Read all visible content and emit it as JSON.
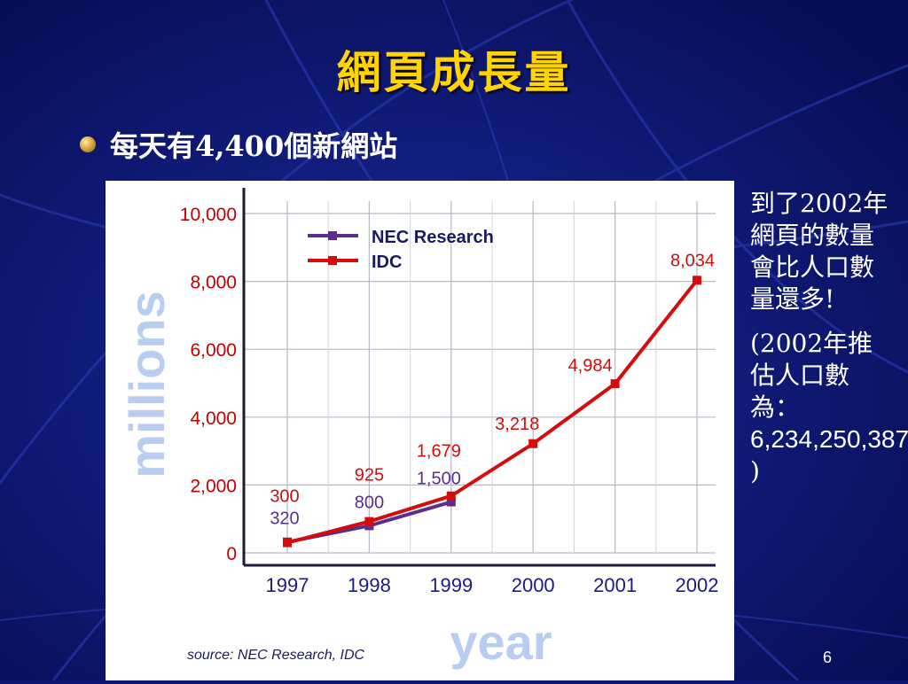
{
  "slide": {
    "title": "網頁成長量",
    "bullet": "每天有4,400個新網站",
    "page_number": "6"
  },
  "side_note": {
    "line1": "到了2002年網頁的數量會比人口數量還多!",
    "line2_a": "(2002年推估人口數為：",
    "line2_b": "6,234,250,387",
    "line2_c": " )"
  },
  "colors": {
    "background": "#0c1470",
    "title": "#ffd400",
    "nec": "#5b2d8e",
    "idc": "#d40c0c"
  },
  "chart_data": {
    "type": "line",
    "categories": [
      "1997",
      "1998",
      "1999",
      "2000",
      "2001",
      "2002"
    ],
    "ylabel": "millions",
    "xlabel": "year",
    "ylim": [
      0,
      10000
    ],
    "y_ticks": [
      "10,000",
      "8,000",
      "6,000",
      "4,000",
      "2,000",
      "0"
    ],
    "grid": true,
    "legend": "top-left",
    "source": "source: NEC Research, IDC",
    "series": [
      {
        "name": "NEC Research",
        "values": [
          320,
          800,
          1500,
          null,
          null,
          null
        ],
        "labels": [
          "320",
          "800",
          "1,500",
          "",
          "",
          ""
        ]
      },
      {
        "name": "IDC",
        "values": [
          300,
          925,
          1679,
          3218,
          4984,
          8034
        ],
        "labels": [
          "300",
          "925",
          "1,679",
          "3,218",
          "4,984",
          "8,034"
        ]
      }
    ]
  }
}
